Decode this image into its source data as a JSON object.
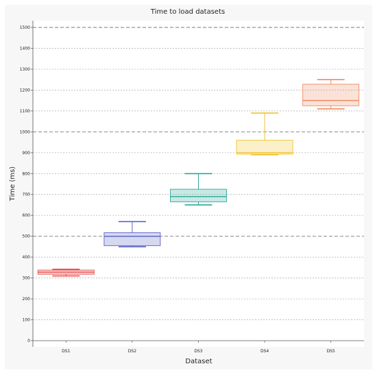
{
  "chart_data": {
    "type": "box",
    "title": "Time to load datasets",
    "xlabel": "Dataset",
    "ylabel": "Time (ms)",
    "ylim": [
      0,
      1500
    ],
    "yticks": [
      0,
      100,
      200,
      300,
      400,
      500,
      600,
      700,
      800,
      900,
      1000,
      1100,
      1200,
      1300,
      1400,
      1500
    ],
    "grid": true,
    "categories": [
      "DS1",
      "DS2",
      "DS3",
      "DS4",
      "DS5"
    ],
    "boxes": [
      {
        "category": "DS1",
        "min": 310,
        "q1": 318,
        "median": 328,
        "q3": 338,
        "max": 342,
        "color": "#e8504f"
      },
      {
        "category": "DS2",
        "min": 450,
        "q1": 455,
        "median": 500,
        "q3": 517,
        "max": 570,
        "color": "#5a63c2"
      },
      {
        "category": "DS3",
        "min": 650,
        "q1": 665,
        "median": 690,
        "q3": 725,
        "max": 800,
        "color": "#2aa898"
      },
      {
        "category": "DS4",
        "min": 890,
        "q1": 893,
        "median": 900,
        "q3": 960,
        "max": 1090,
        "color": "#f2c230"
      },
      {
        "category": "DS5",
        "min": 1110,
        "q1": 1125,
        "median": 1150,
        "q3": 1228,
        "max": 1250,
        "color": "#ee8a62"
      }
    ]
  }
}
